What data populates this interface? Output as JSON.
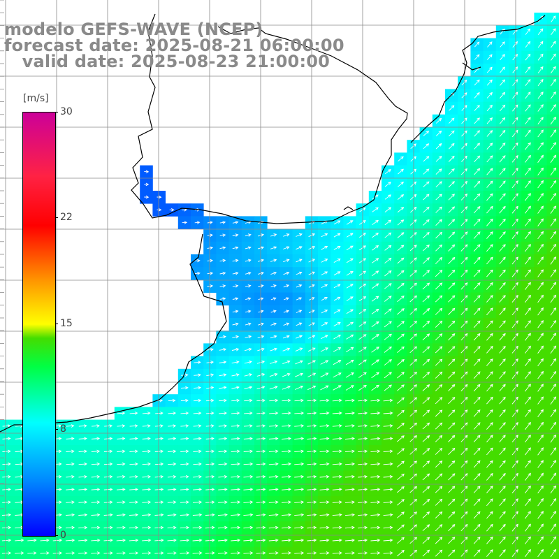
{
  "title": {
    "line1": "modelo GEFS-WAVE (NCEP)",
    "line2": "forecast date: 2025-08-21 06:00:00",
    "line3": "   valid date: 2025-08-23 21:00:00"
  },
  "colorbar": {
    "unit": "[m/s]",
    "min": 0,
    "max": 30,
    "ticks": [
      "30",
      "22",
      "15",
      "8",
      "0"
    ],
    "colors": [
      "#0000ff",
      "#0088ff",
      "#00ffff",
      "#00ff44",
      "#44dd00",
      "#ffff00",
      "#ff9900",
      "#ff0000",
      "#ff2244",
      "#cc0099"
    ]
  },
  "map": {
    "field": "wind speed with direction arrows",
    "land_color": "#ffffff",
    "grid_color": "#8a8a8a",
    "coast_color": "#000000",
    "arrow_color": "#ffffff"
  }
}
